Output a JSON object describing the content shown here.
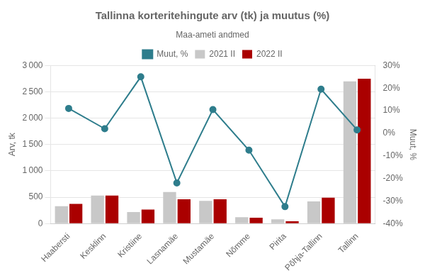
{
  "chart_data": {
    "type": "bar",
    "title": "Tallinna korteritehingute arv (tk) ja muutus (%)",
    "subtitle": "Maa-ameti andmed",
    "ylabel": "Arv, tk",
    "y2label": "Muut, %",
    "categories": [
      "Haabersti",
      "Kesklinn",
      "Kristiine",
      "Lasnamäe",
      "Mustamäe",
      "Nõmme",
      "Pirita",
      "Põhja-Tallinn",
      "Tallinn"
    ],
    "series": [
      {
        "name": "2021 II",
        "color": "#c8c8c8",
        "values": [
          330,
          530,
          220,
          600,
          430,
          120,
          80,
          420,
          2700
        ]
      },
      {
        "name": "2022 II",
        "color": "#aa0000",
        "values": [
          375,
          530,
          265,
          460,
          460,
          110,
          45,
          490,
          2750
        ]
      },
      {
        "name": "Muut, %",
        "color": "#2e7d8c",
        "type": "line",
        "axis": "y2",
        "marker": "circle",
        "line_style": "solid",
        "values": [
          11.0,
          2.0,
          25.0,
          -22.0,
          10.5,
          -7.5,
          -32.5,
          19.5,
          1.5
        ]
      }
    ],
    "ylim": [
      0,
      3000
    ],
    "yticks": [
      0,
      500,
      {
        "value": 1000,
        "label": "1 000"
      },
      {
        "value": 1500,
        "label": "1 500"
      },
      {
        "value": 2000,
        "label": "2 000"
      },
      {
        "value": 2500,
        "label": "2 500"
      },
      {
        "value": 3000,
        "label": "3 000"
      }
    ],
    "y2lim": [
      -40,
      30
    ],
    "y2ticks": [
      {
        "value": -40,
        "label": "-40%"
      },
      {
        "value": -30,
        "label": "-30%"
      },
      {
        "value": -20,
        "label": "-20%"
      },
      {
        "value": -10,
        "label": "-10%"
      },
      {
        "value": 0,
        "label": "0%"
      },
      {
        "value": 10,
        "label": "10%"
      },
      {
        "value": 20,
        "label": "20%"
      },
      {
        "value": 30,
        "label": "30%"
      }
    ],
    "grid": true,
    "legend": "top"
  }
}
